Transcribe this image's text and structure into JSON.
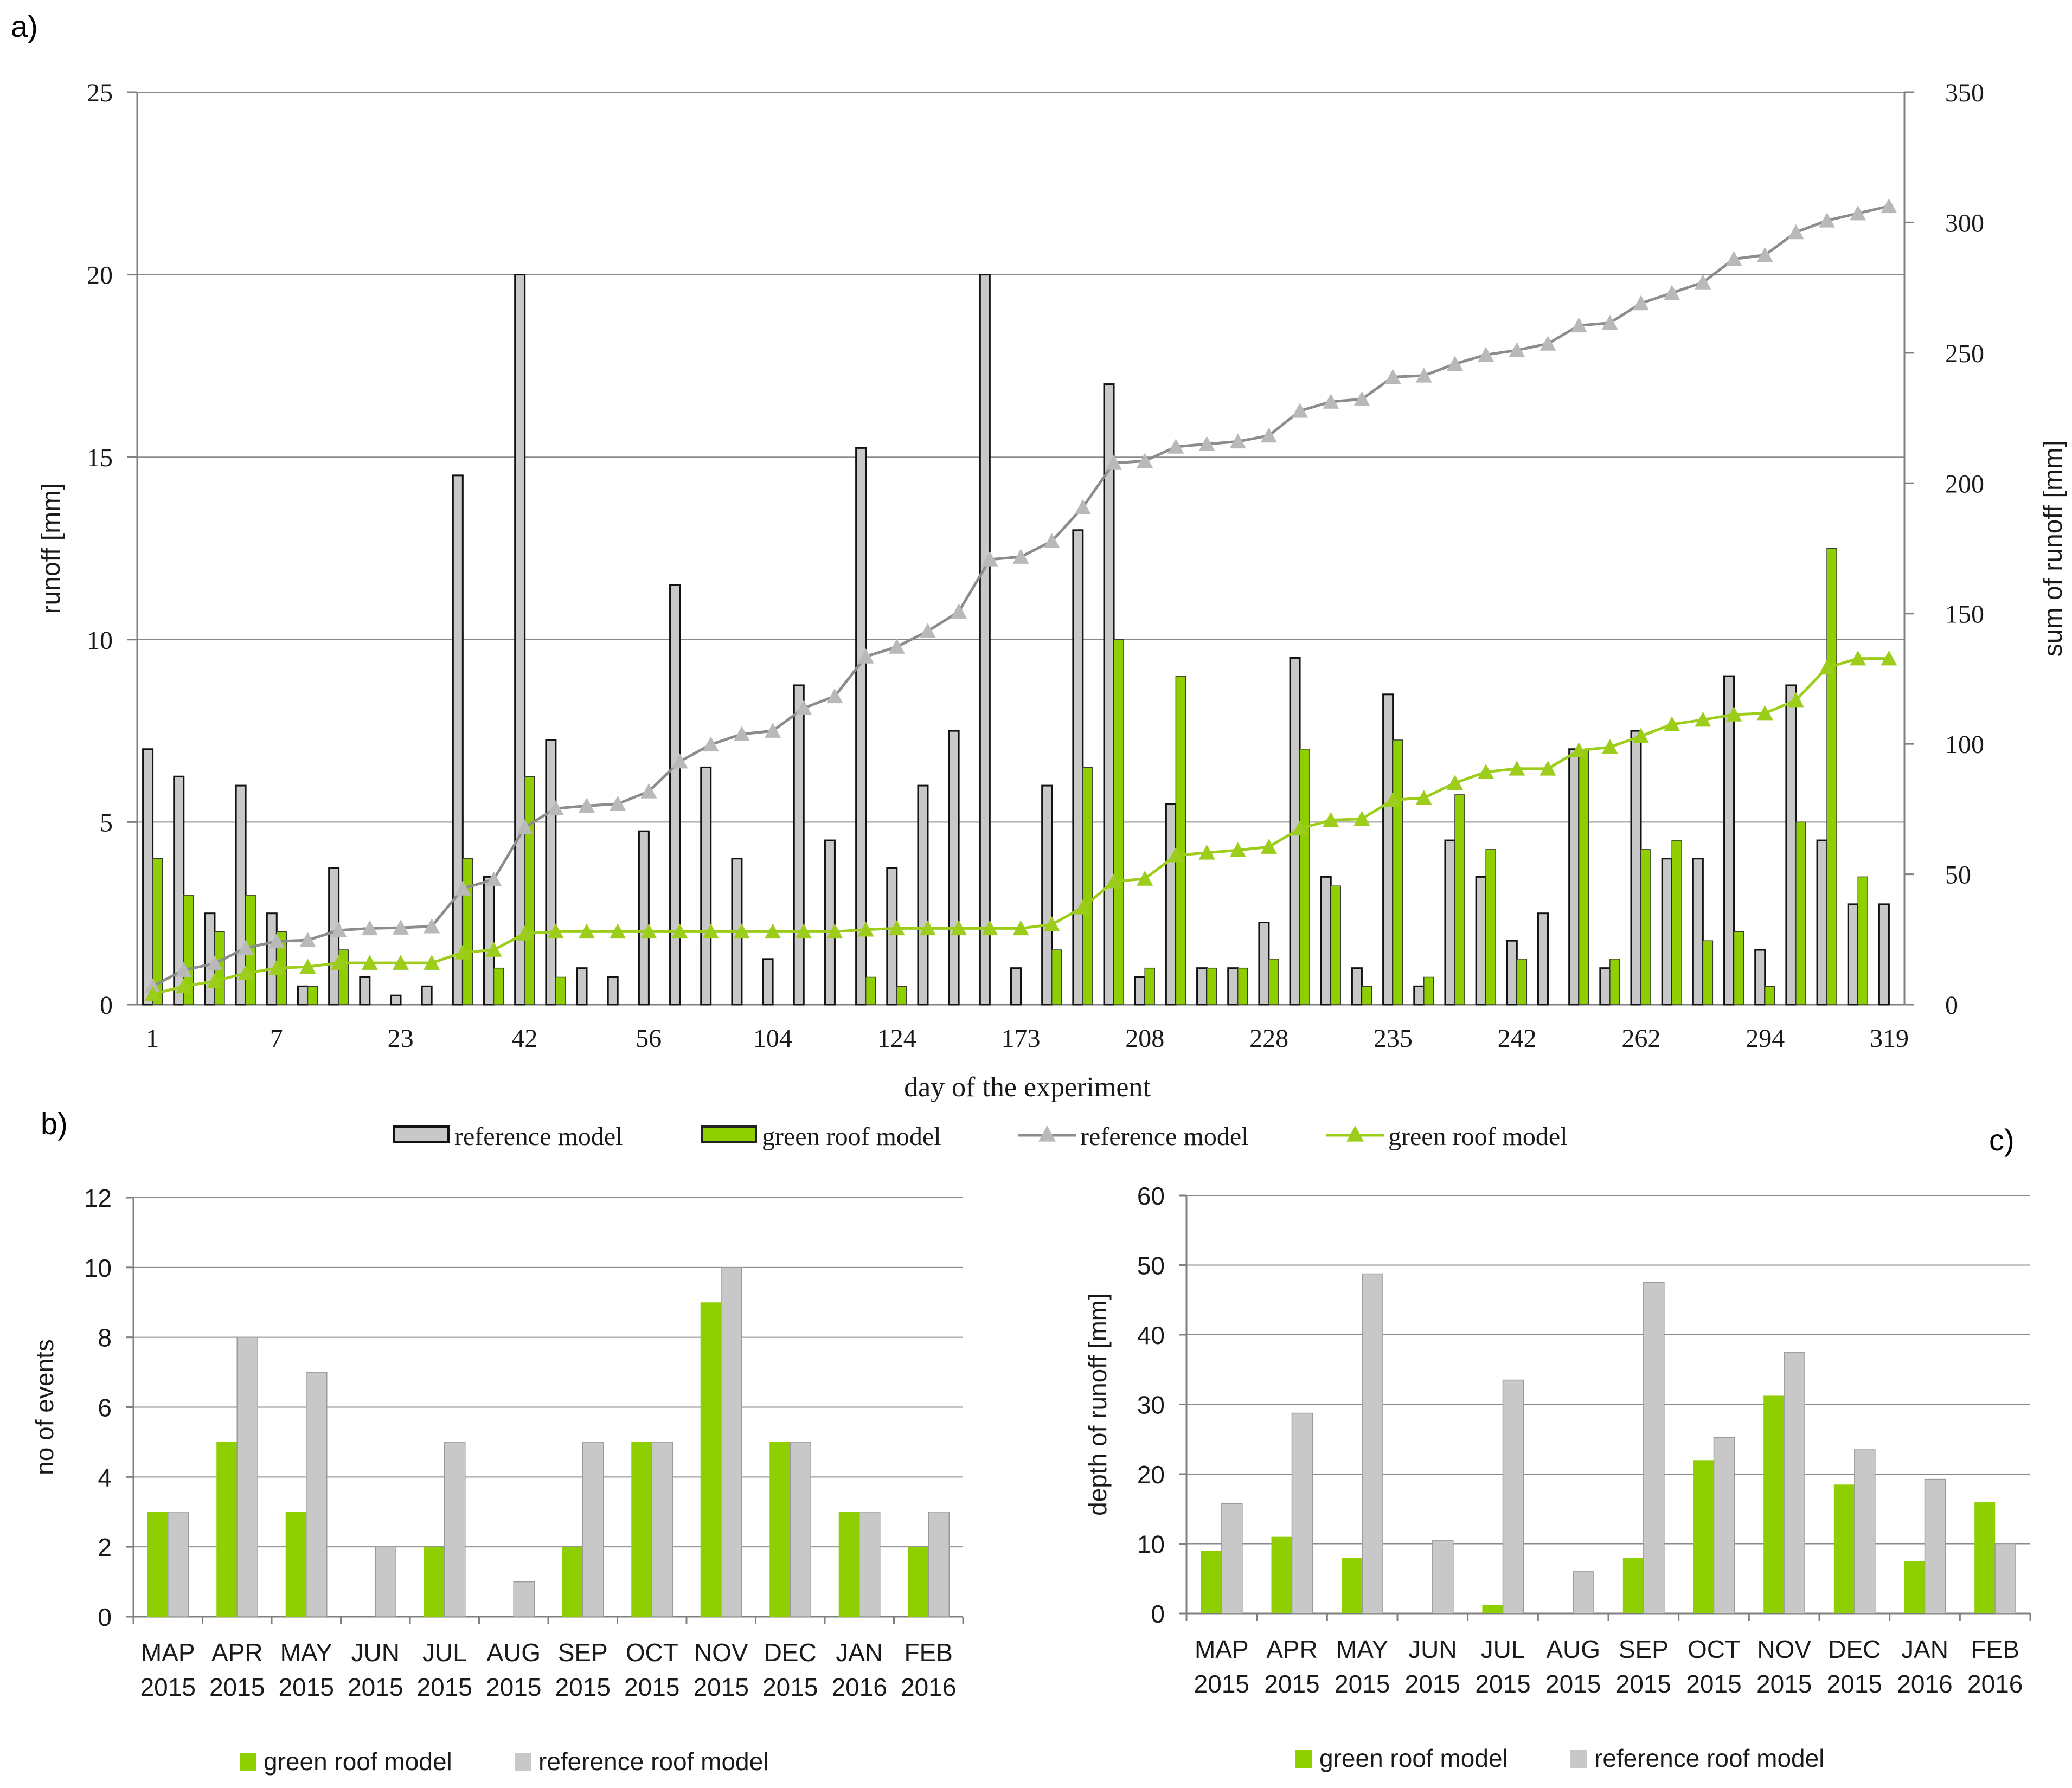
{
  "panel_labels": {
    "a": "a)",
    "b": "b)",
    "c": "c)"
  },
  "colors": {
    "green": "#8fcf00",
    "green_line": "#9ccd1a",
    "gray_bar": "#c8c8c8",
    "gray_line": "#8c8c8c",
    "gray_marker": "#b9b9b9",
    "grid": "#8a8a8a",
    "axis": "#7f7f7f",
    "text": "#1a1a1a"
  },
  "chart_data": [
    {
      "id": "a",
      "type": "bar+line",
      "xlabel": "day of the experiment",
      "ylabel": "runoff [mm]",
      "y2label": "sum of runoff [mm]",
      "ylim": [
        0,
        25
      ],
      "y2lim": [
        0,
        350
      ],
      "yticks": [
        0,
        5,
        10,
        15,
        20,
        25
      ],
      "y2ticks": [
        0,
        50,
        100,
        150,
        200,
        250,
        300,
        350
      ],
      "xtick_labels": [
        "1",
        "7",
        "23",
        "42",
        "56",
        "104",
        "124",
        "173",
        "208",
        "228",
        "235",
        "242",
        "262",
        "294",
        "319"
      ],
      "legend": [
        "reference model",
        "green roof model",
        "reference model",
        "green roof model"
      ],
      "series": [
        {
          "name": "reference model",
          "kind": "bar",
          "values": [
            7,
            6.25,
            2.5,
            6,
            2.5,
            0.5,
            3.75,
            0.75,
            0.25,
            0.5,
            14.5,
            3.5,
            20,
            7.25,
            1,
            0.75,
            4.75,
            11.5,
            6.5,
            4,
            1.25,
            8.75,
            4.5,
            15.25,
            3.75,
            6,
            7.5,
            20,
            1,
            6,
            13,
            17,
            0.75,
            5.5,
            1,
            1,
            2.25,
            9.5,
            3.5,
            1,
            8.5,
            0.5,
            4.5,
            3.5,
            1.75,
            2.5,
            7,
            1,
            7.5,
            4,
            4,
            9,
            1.5,
            8.75,
            4.5,
            2.75,
            2.75
          ]
        },
        {
          "name": "green roof model",
          "kind": "bar",
          "values": [
            4,
            3,
            2,
            3,
            2,
            0.5,
            1.5,
            0,
            0,
            0,
            4,
            1,
            6.25,
            0.75,
            0,
            0,
            0,
            0,
            0,
            0,
            0,
            0,
            0,
            0.75,
            0.5,
            0,
            0,
            0,
            0,
            1.5,
            6.5,
            10,
            1,
            9,
            1,
            1,
            1.25,
            7,
            3.25,
            0.5,
            7.25,
            0.75,
            5.75,
            4.25,
            1.25,
            0,
            7,
            1.25,
            4.25,
            4.5,
            1.75,
            2,
            0.5,
            5,
            12.5,
            3.5,
            0
          ]
        },
        {
          "name": "reference model",
          "kind": "line",
          "axis": "y2",
          "values": [
            7,
            13.25,
            15.75,
            21.75,
            24.25,
            24.75,
            28.5,
            29.25,
            29.5,
            30,
            44.5,
            48,
            68,
            75.25,
            76.25,
            77,
            81.75,
            93.25,
            99.75,
            103.75,
            105,
            113.75,
            118.25,
            133.5,
            137.25,
            143.25,
            150.75,
            170.75,
            171.75,
            177.75,
            190.75,
            207.75,
            208.5,
            214,
            215,
            216,
            218.25,
            227.75,
            231.25,
            232.25,
            240.75,
            241.25,
            245.75,
            249.25,
            251,
            253.5,
            260.5,
            261.5,
            269,
            273,
            277,
            286,
            287.5,
            296.25,
            300.75,
            303.5,
            306.25
          ]
        },
        {
          "name": "green roof model",
          "kind": "line",
          "axis": "y2",
          "values": [
            4,
            7,
            9,
            12,
            14,
            14.5,
            16,
            16,
            16,
            16,
            20,
            21,
            27.25,
            28,
            28,
            28,
            28,
            28,
            28,
            28,
            28,
            28,
            28,
            28.75,
            29.25,
            29.25,
            29.25,
            29.25,
            29.25,
            30.75,
            37.25,
            47.25,
            48.25,
            57.25,
            58.25,
            59.25,
            60.5,
            67.5,
            70.75,
            71.25,
            78.5,
            79.25,
            85,
            89.25,
            90.5,
            90.5,
            97.5,
            98.75,
            103,
            107.5,
            109.25,
            111.25,
            111.75,
            116.75,
            129.25,
            132.75,
            132.75
          ]
        }
      ]
    },
    {
      "id": "b",
      "type": "bar",
      "ylabel": "no of events",
      "ylim": [
        0,
        12
      ],
      "yticks": [
        0,
        2,
        4,
        6,
        8,
        10,
        12
      ],
      "categories": [
        [
          "MAP",
          "2015"
        ],
        [
          "APR",
          "2015"
        ],
        [
          "MAY",
          "2015"
        ],
        [
          "JUN",
          "2015"
        ],
        [
          "JUL",
          "2015"
        ],
        [
          "AUG",
          "2015"
        ],
        [
          "SEP",
          "2015"
        ],
        [
          "OCT",
          "2015"
        ],
        [
          "NOV",
          "2015"
        ],
        [
          "DEC",
          "2015"
        ],
        [
          "JAN",
          "2016"
        ],
        [
          "FEB",
          "2016"
        ]
      ],
      "series": [
        {
          "name": "green roof model",
          "values": [
            3,
            5,
            3,
            0,
            2,
            0,
            2,
            5,
            9,
            5,
            3,
            2
          ]
        },
        {
          "name": "reference roof model",
          "values": [
            3,
            8,
            7,
            2,
            5,
            1,
            5,
            5,
            10,
            5,
            3,
            3
          ]
        }
      ]
    },
    {
      "id": "c",
      "type": "bar",
      "ylabel": "depth of runoff [mm]",
      "ylim": [
        0,
        60
      ],
      "yticks": [
        0,
        10,
        20,
        30,
        40,
        50,
        60
      ],
      "categories": [
        [
          "MAP",
          "2015"
        ],
        [
          "APR",
          "2015"
        ],
        [
          "MAY",
          "2015"
        ],
        [
          "JUN",
          "2015"
        ],
        [
          "JUL",
          "2015"
        ],
        [
          "AUG",
          "2015"
        ],
        [
          "SEP",
          "2015"
        ],
        [
          "OCT",
          "2015"
        ],
        [
          "NOV",
          "2015"
        ],
        [
          "DEC",
          "2015"
        ],
        [
          "JAN",
          "2016"
        ],
        [
          "FEB",
          "2016"
        ]
      ],
      "series": [
        {
          "name": "green roof model",
          "values": [
            9,
            11,
            8,
            0,
            1.25,
            0,
            8,
            22,
            31.25,
            18.5,
            7.5,
            16
          ]
        },
        {
          "name": "reference roof model",
          "values": [
            15.75,
            28.75,
            48.75,
            10.5,
            33.5,
            6,
            47.5,
            25.25,
            37.5,
            23.5,
            19.25,
            10
          ]
        }
      ]
    }
  ]
}
